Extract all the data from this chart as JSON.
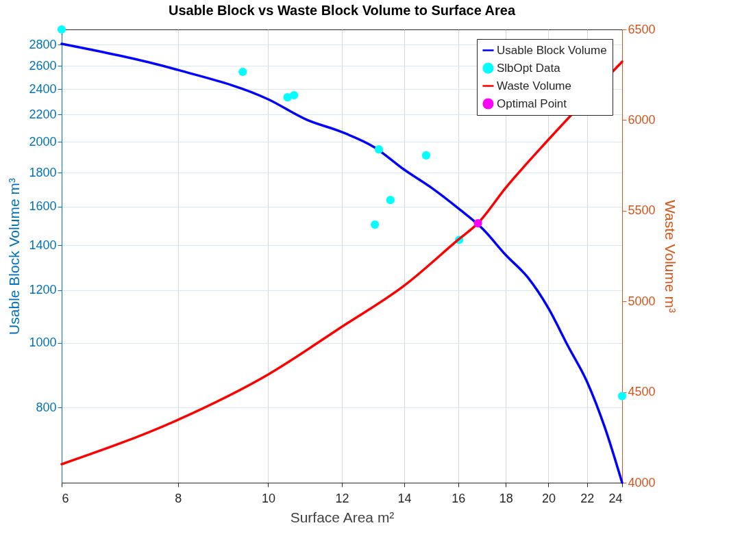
{
  "chart_data": {
    "type": "line",
    "title": "Usable Block vs Waste Block Volume to Surface Area",
    "xlabel": "Surface Area m²",
    "ylabel": "Usable Block Volume m³",
    "y2label": "Waste Volume m³",
    "log": "xy",
    "grid": true,
    "legend": "top right",
    "xlim": [
      6,
      24
    ],
    "xticks": [
      6,
      8,
      10,
      12,
      14,
      16,
      18,
      20,
      22,
      24
    ],
    "ylim": [
      617,
      2950
    ],
    "yticks": [
      800,
      1000,
      1200,
      1400,
      1600,
      1800,
      2000,
      2200,
      2400,
      2600,
      2800
    ],
    "y2lim": [
      4000,
      6500
    ],
    "y2ticks": [
      4000,
      4500,
      5000,
      5500,
      6000,
      6500
    ],
    "series": [
      {
        "name": "Usable Block Volume",
        "color": "#0000ff",
        "x": [
          6,
          8,
          10,
          11,
          12,
          13,
          14,
          15,
          16,
          17,
          18,
          19,
          20,
          21,
          22,
          23,
          24
        ],
        "values": [
          2807,
          2565,
          2318,
          2160,
          2070,
          1965,
          1818,
          1705,
          1591,
          1482,
          1354,
          1254,
          1127,
          988,
          875,
          746,
          617
        ]
      },
      {
        "name": "SlbOpt Data",
        "type": "scatter",
        "marker": "circle",
        "color": "#00ffff",
        "x": [
          6,
          9.39,
          10.49,
          10.66,
          13.15,
          14.78,
          13.53,
          13.02,
          16.04,
          24
        ],
        "values": [
          2950,
          2548,
          2334,
          2351,
          1950,
          1910,
          1637,
          1504,
          1427,
          832
        ]
      },
      {
        "name": "Waste Volume",
        "axis": "y2",
        "color": "#ff0000",
        "x": [
          6,
          8,
          10,
          12,
          14,
          16,
          16.8,
          18,
          20,
          24
        ],
        "values": [
          4102,
          4347,
          4597,
          4860,
          5087,
          5340,
          5431,
          5627,
          5892,
          6322
        ]
      },
      {
        "name": "Optimal Point",
        "type": "scatter",
        "marker": "circle",
        "axis": "y2",
        "color": "#ff00ff",
        "x": [
          16.8
        ],
        "values": [
          5431
        ]
      }
    ]
  }
}
